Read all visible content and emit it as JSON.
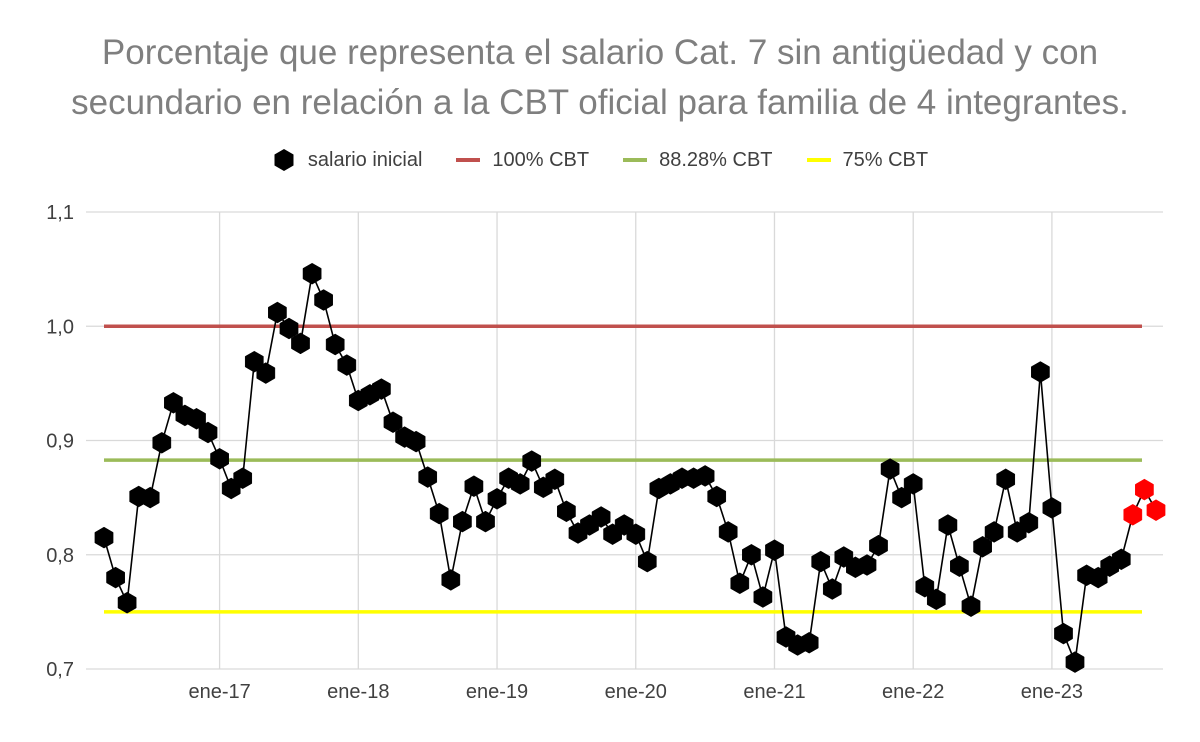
{
  "chart_data": {
    "type": "line",
    "title_lines": [
      "Porcentaje que representa el salario Cat. 7 sin antigüedad y con",
      "secundario en relación a la CBT oficial para familia de 4 integrantes."
    ],
    "ylim": [
      0.7,
      1.1
    ],
    "yticks": [
      0.7,
      0.8,
      0.9,
      1.0,
      1.1
    ],
    "ytick_labels": [
      "0,7",
      "0,8",
      "0,9",
      "1,0",
      "1,1"
    ],
    "x_start": "2016-03",
    "xtick_labels": [
      "ene-17",
      "ene-18",
      "ene-19",
      "ene-20",
      "ene-21",
      "ene-22",
      "ene-23"
    ],
    "grid": true,
    "legend_position": "top",
    "series": [
      {
        "name": "salario inicial",
        "color": "#000000",
        "values": [
          0.815,
          0.78,
          0.758,
          0.851,
          0.85,
          0.898,
          0.933,
          0.922,
          0.919,
          0.907,
          0.884,
          0.858,
          0.867,
          0.969,
          0.959,
          1.012,
          0.998,
          0.985,
          1.046,
          1.023,
          0.984,
          0.966,
          0.935,
          0.94,
          0.945,
          0.916,
          0.903,
          0.899,
          0.868,
          0.836,
          0.778,
          0.829,
          0.86,
          0.829,
          0.849,
          0.867,
          0.862,
          0.882,
          0.859,
          0.866,
          0.838,
          0.819,
          0.826,
          0.833,
          0.818,
          0.826,
          0.818,
          0.794,
          0.858,
          0.862,
          0.867,
          0.867,
          0.869,
          0.851,
          0.82,
          0.775,
          0.8,
          0.763,
          0.804,
          0.728,
          0.721,
          0.723,
          0.794,
          0.77,
          0.798,
          0.789,
          0.791,
          0.808,
          0.875,
          0.85,
          0.862,
          0.772,
          0.761,
          0.826,
          0.79,
          0.755,
          0.807,
          0.82,
          0.866,
          0.82,
          0.828,
          0.96,
          0.841,
          0.731,
          0.706,
          0.782,
          0.78,
          0.79,
          0.796
        ]
      },
      {
        "name": "",
        "color": "#ff0000",
        "x_offset_months": 89,
        "values": [
          0.835,
          0.857,
          0.839
        ]
      },
      {
        "name": "100% CBT",
        "color": "#c0504d",
        "constant": 1.0
      },
      {
        "name": "88.28% CBT",
        "color": "#9bbb59",
        "constant": 0.8828
      },
      {
        "name": "75% CBT",
        "color": "#ffff00",
        "constant": 0.75
      }
    ]
  }
}
